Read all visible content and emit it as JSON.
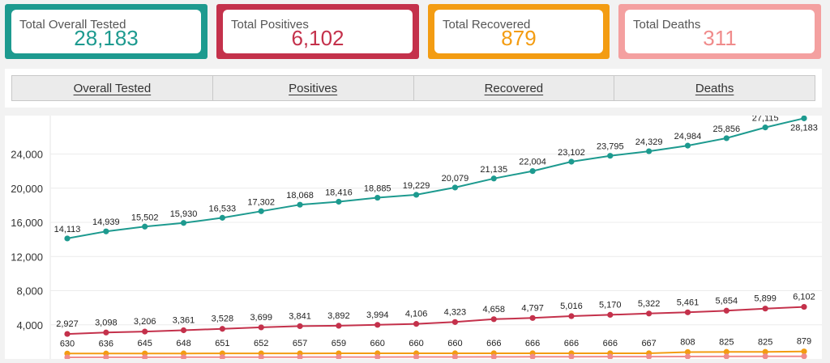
{
  "cards": [
    {
      "label": "Total Overall Tested",
      "value": "28,183",
      "color": "#1d9a8f"
    },
    {
      "label": "Total Positives",
      "value": "6,102",
      "color": "#c4314b"
    },
    {
      "label": "Total Recovered",
      "value": "879",
      "color": "#f39c12"
    },
    {
      "label": "Total Deaths",
      "value": "311",
      "color": "#f08b8b"
    }
  ],
  "tabs": [
    "Overall Tested",
    "Positives",
    "Recovered",
    "Deaths"
  ],
  "chart_data": {
    "type": "line",
    "ylim": [
      0,
      28500
    ],
    "yticks": [
      4000,
      8000,
      12000,
      16000,
      20000,
      24000
    ],
    "ytick_labels": [
      "4,000",
      "8,000",
      "12,000",
      "16,000",
      "20,000",
      "24,000"
    ],
    "grid": true,
    "series": [
      {
        "color": "#1d9a8f",
        "values": [
          14113,
          14939,
          15502,
          15930,
          16533,
          17302,
          18068,
          18416,
          18885,
          19229,
          20079,
          21135,
          22004,
          23102,
          23795,
          24329,
          24984,
          25856,
          27115,
          28183
        ],
        "labels": [
          "14,113",
          "14,939",
          "15,502",
          "15,930",
          "16,533",
          "17,302",
          "18,068",
          "18,416",
          "18,885",
          "19,229",
          "20,079",
          "21,135",
          "22,004",
          "23,102",
          "23,795",
          "24,329",
          "24,984",
          "25,856",
          "27,115",
          "28,183"
        ]
      },
      {
        "color": "#c4314b",
        "values": [
          2927,
          3098,
          3206,
          3361,
          3528,
          3699,
          3841,
          3892,
          3994,
          4106,
          4323,
          4658,
          4797,
          5016,
          5170,
          5322,
          5461,
          5654,
          5899,
          6102
        ],
        "labels": [
          "2,927",
          "3,098",
          "3,206",
          "3,361",
          "3,528",
          "3,699",
          "3,841",
          "3,892",
          "3,994",
          "4,106",
          "4,323",
          "4,658",
          "4,797",
          "5,016",
          "5,170",
          "5,322",
          "5,461",
          "5,654",
          "5,899",
          "6,102"
        ]
      },
      {
        "color": "#f39c12",
        "values": [
          630,
          636,
          645,
          648,
          651,
          652,
          657,
          659,
          660,
          660,
          660,
          666,
          666,
          666,
          666,
          667,
          808,
          825,
          825,
          879
        ],
        "labels": [
          "630",
          "636",
          "645",
          "648",
          "651",
          "652",
          "657",
          "659",
          "660",
          "660",
          "660",
          "666",
          "666",
          "666",
          "666",
          "667",
          "808",
          "825",
          "825",
          "879"
        ]
      },
      {
        "color": "#f08b8b",
        "values": [
          190,
          195,
          200,
          205,
          210,
          215,
          220,
          225,
          230,
          235,
          240,
          250,
          260,
          265,
          270,
          275,
          285,
          295,
          305,
          311
        ],
        "labels": []
      }
    ]
  }
}
